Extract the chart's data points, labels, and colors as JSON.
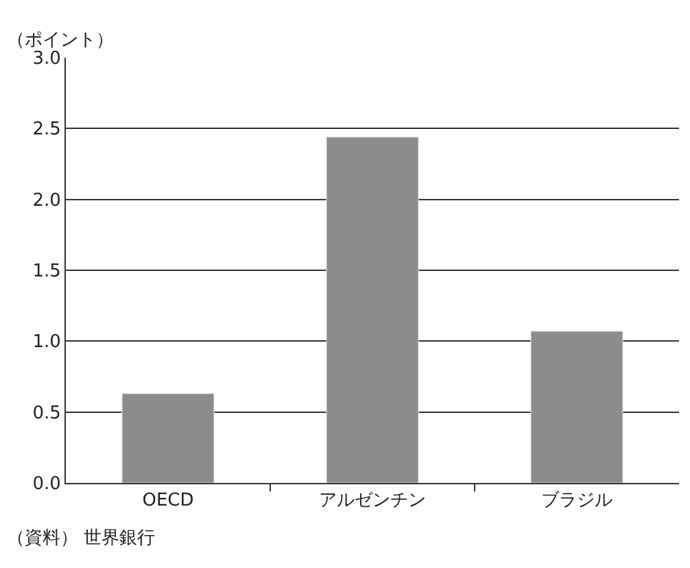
{
  "chart_data": {
    "type": "bar",
    "ylabel": "（ポイント）",
    "categories": [
      "OECD",
      "アルゼンチン",
      "ブラジル"
    ],
    "values": [
      0.63,
      2.44,
      1.07
    ],
    "color": "#8c8c8c",
    "ylim": [
      0,
      3.0
    ],
    "yticks": [
      {
        "value": 0,
        "label": "0.0"
      },
      0.5,
      {
        "value": 1,
        "label": "1.0"
      },
      1.5,
      {
        "value": 2,
        "label": "2.0"
      },
      2.5,
      {
        "value": 3,
        "label": "3.0"
      }
    ],
    "grid": "y",
    "legend": false,
    "annotations": [
      "（資料） 世界銀行"
    ]
  }
}
